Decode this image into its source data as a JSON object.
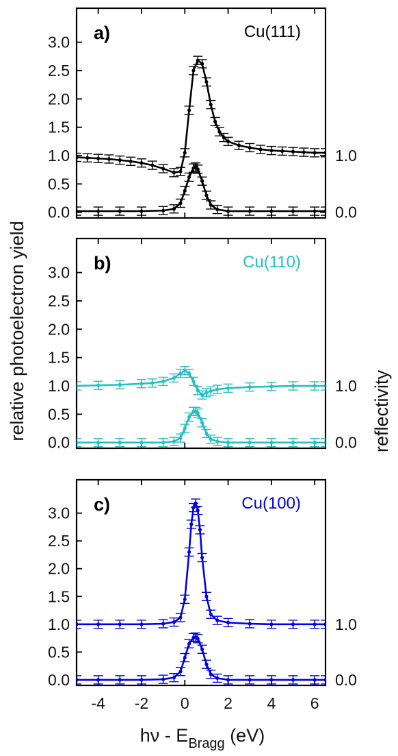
{
  "chart_data": [
    {
      "type": "line",
      "panel_label": "a)",
      "material": "Cu(111)",
      "color": "#000000",
      "xlim": [
        -5,
        6.5
      ],
      "ylim": [
        -0.1,
        3.6
      ],
      "x_ticks": [
        -4,
        -2,
        0,
        2,
        4,
        6
      ],
      "x_tick_labels": [
        "-4",
        "-2",
        "0",
        "2",
        "4",
        "6"
      ],
      "y_ticks_left": [
        0.0,
        0.5,
        1.0,
        1.5,
        2.0,
        2.5,
        3.0
      ],
      "y_tick_labels_left": [
        "0.0",
        "0.5",
        "1.0",
        "1.5",
        "2.0",
        "2.5",
        "3.0"
      ],
      "y_ticks_right": [
        0.0,
        1.0
      ],
      "y_tick_labels_right": [
        "0.0",
        "1.0"
      ],
      "series": [
        {
          "x": [
            -5.0,
            -4.5,
            -4.0,
            -3.5,
            -3.0,
            -2.5,
            -2.0,
            -1.5,
            -1.0,
            -0.5,
            -0.2,
            0.0,
            0.2,
            0.4,
            0.6,
            0.8,
            1.0,
            1.2,
            1.4,
            1.6,
            1.8,
            2.0,
            2.5,
            3.0,
            3.5,
            4.0,
            4.5,
            5.0,
            5.5,
            6.0,
            6.5
          ],
          "y": [
            0.97,
            0.96,
            0.95,
            0.94,
            0.92,
            0.9,
            0.87,
            0.83,
            0.77,
            0.7,
            0.72,
            1.05,
            1.8,
            2.5,
            2.68,
            2.62,
            2.3,
            1.9,
            1.6,
            1.42,
            1.32,
            1.25,
            1.18,
            1.14,
            1.11,
            1.09,
            1.08,
            1.07,
            1.06,
            1.05,
            1.05
          ]
        },
        {
          "x": [
            -5.0,
            -4.0,
            -3.0,
            -2.0,
            -1.0,
            -0.5,
            -0.2,
            0.0,
            0.2,
            0.4,
            0.5,
            0.6,
            0.8,
            1.0,
            1.2,
            1.5,
            2.0,
            3.0,
            4.0,
            5.0,
            6.0,
            6.5
          ],
          "y": [
            0.02,
            0.02,
            0.02,
            0.02,
            0.03,
            0.06,
            0.16,
            0.38,
            0.62,
            0.78,
            0.8,
            0.76,
            0.55,
            0.3,
            0.13,
            0.05,
            0.02,
            0.02,
            0.02,
            0.02,
            0.02,
            0.02
          ]
        }
      ]
    },
    {
      "type": "line",
      "panel_label": "b)",
      "material": "Cu(110)",
      "color": "#22C0C0",
      "xlim": [
        -5,
        6.5
      ],
      "ylim": [
        -0.1,
        3.6
      ],
      "x_ticks": [
        -4,
        -2,
        0,
        2,
        4,
        6
      ],
      "x_tick_labels": [
        "-4",
        "-2",
        "0",
        "2",
        "4",
        "6"
      ],
      "y_ticks_left": [
        0.0,
        0.5,
        1.0,
        1.5,
        2.0,
        2.5,
        3.0
      ],
      "y_tick_labels_left": [
        "0.0",
        "0.5",
        "1.0",
        "1.5",
        "2.0",
        "2.5",
        "3.0"
      ],
      "y_ticks_right": [
        0.0,
        1.0
      ],
      "y_tick_labels_right": [
        "0.0",
        "1.0"
      ],
      "series": [
        {
          "x": [
            -5.0,
            -4.0,
            -3.0,
            -2.0,
            -1.5,
            -1.0,
            -0.5,
            -0.2,
            0.0,
            0.2,
            0.4,
            0.6,
            0.8,
            1.0,
            1.2,
            1.5,
            2.0,
            3.0,
            4.0,
            5.0,
            6.0,
            6.5
          ],
          "y": [
            1.0,
            1.01,
            1.02,
            1.04,
            1.05,
            1.08,
            1.14,
            1.22,
            1.27,
            1.22,
            1.08,
            0.92,
            0.84,
            0.88,
            0.91,
            0.94,
            0.96,
            0.98,
            0.99,
            1.0,
            1.0,
            1.0
          ]
        },
        {
          "x": [
            -5.0,
            -4.0,
            -3.0,
            -2.0,
            -1.0,
            -0.5,
            -0.2,
            0.0,
            0.2,
            0.4,
            0.5,
            0.6,
            0.8,
            1.0,
            1.2,
            1.5,
            2.0,
            3.0,
            4.0,
            5.0,
            6.0,
            6.5
          ],
          "y": [
            0.0,
            0.0,
            0.0,
            0.0,
            0.0,
            0.02,
            0.08,
            0.25,
            0.45,
            0.55,
            0.55,
            0.52,
            0.35,
            0.16,
            0.06,
            0.02,
            0.0,
            0.0,
            0.0,
            0.0,
            0.0,
            0.0
          ]
        }
      ]
    },
    {
      "type": "line",
      "panel_label": "c)",
      "material": "Cu(100)",
      "color": "#0000E0",
      "xlim": [
        -5,
        6.5
      ],
      "ylim": [
        -0.1,
        3.6
      ],
      "x_ticks": [
        -4,
        -2,
        0,
        2,
        4,
        6
      ],
      "x_tick_labels": [
        "-4",
        "-2",
        "0",
        "2",
        "4",
        "6"
      ],
      "y_ticks_left": [
        0.0,
        0.5,
        1.0,
        1.5,
        2.0,
        2.5,
        3.0
      ],
      "y_tick_labels_left": [
        "0.0",
        "0.5",
        "1.0",
        "1.5",
        "2.0",
        "2.5",
        "3.0"
      ],
      "y_ticks_right": [
        0.0,
        1.0
      ],
      "y_tick_labels_right": [
        "0.0",
        "1.0"
      ],
      "series": [
        {
          "x": [
            -5.0,
            -4.0,
            -3.0,
            -2.0,
            -1.0,
            -0.5,
            -0.2,
            0.0,
            0.2,
            0.3,
            0.4,
            0.5,
            0.6,
            0.7,
            0.8,
            1.0,
            1.2,
            1.5,
            2.0,
            3.0,
            4.0,
            5.0,
            6.0,
            6.5
          ],
          "y": [
            1.0,
            1.0,
            1.0,
            1.0,
            1.01,
            1.04,
            1.12,
            1.45,
            2.3,
            2.8,
            3.1,
            3.18,
            3.05,
            2.7,
            2.2,
            1.5,
            1.18,
            1.07,
            1.03,
            1.01,
            1.0,
            1.0,
            1.0,
            1.0
          ]
        },
        {
          "x": [
            -5.0,
            -4.0,
            -3.0,
            -2.0,
            -1.0,
            -0.5,
            -0.2,
            0.0,
            0.2,
            0.4,
            0.5,
            0.6,
            0.8,
            1.0,
            1.2,
            1.5,
            2.0,
            3.0,
            4.0,
            5.0,
            6.0,
            6.5
          ],
          "y": [
            0.0,
            0.0,
            0.0,
            0.0,
            0.01,
            0.04,
            0.15,
            0.4,
            0.65,
            0.76,
            0.77,
            0.74,
            0.55,
            0.28,
            0.1,
            0.03,
            0.0,
            0.0,
            0.0,
            0.0,
            0.0,
            0.0
          ]
        }
      ]
    }
  ],
  "axes": {
    "y_left_title": "relative photoelectron yield",
    "y_right_title": "reflectivity",
    "x_title_main": "hν - E",
    "x_title_sub": "Bragg",
    "x_title_unit": " (eV)"
  }
}
